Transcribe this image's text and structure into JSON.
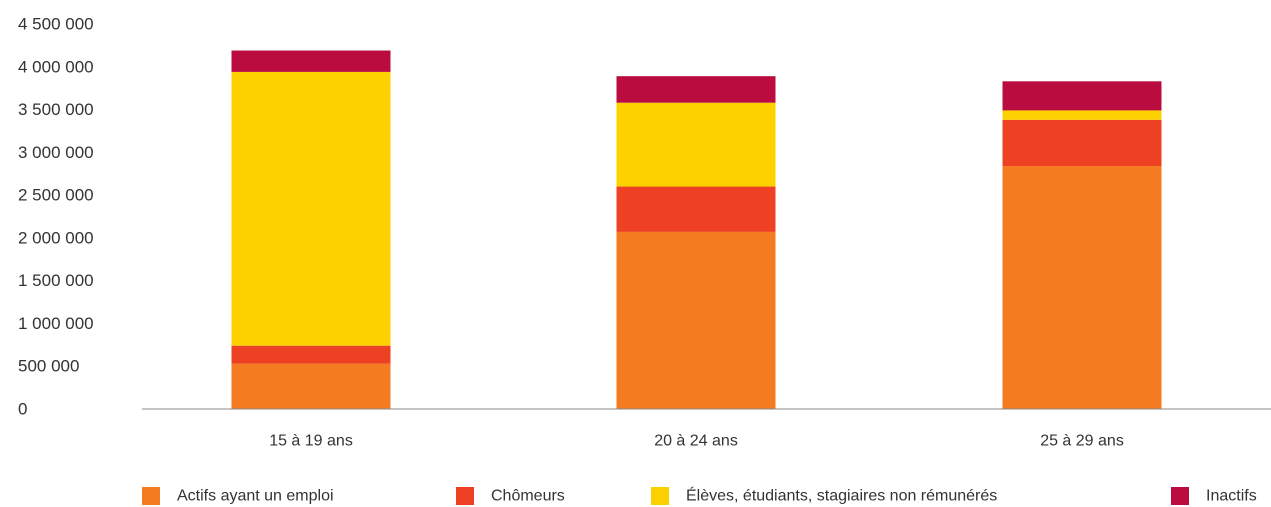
{
  "chart_data": {
    "type": "bar",
    "stacked": true,
    "title": "",
    "xlabel": "",
    "ylabel": "",
    "categories": [
      "15 à 19 ans",
      "20 à 24 ans",
      "25 à 29 ans"
    ],
    "y_ticks": [
      0,
      500000,
      1000000,
      1500000,
      2000000,
      2500000,
      3000000,
      3500000,
      4000000,
      4500000
    ],
    "y_tick_labels": [
      "0",
      "500 000",
      "1 000 000",
      "1 500 000",
      "2 000 000",
      "2 500 000",
      "3 000 000",
      "3 500 000",
      "4 000 000",
      "4 500 000"
    ],
    "ylim": [
      0,
      4500000
    ],
    "grid": false,
    "legend_position": "bottom",
    "series": [
      {
        "name": "Actifs ayant un emploi",
        "color": "#F47B20",
        "values": [
          530000,
          2070000,
          2840000
        ]
      },
      {
        "name": "Chômeurs",
        "color": "#EE4023",
        "values": [
          210000,
          530000,
          540000
        ]
      },
      {
        "name": "Élèves, étudiants, stagiaires non rémunérés",
        "color": "#FDD000",
        "values": [
          3200000,
          980000,
          110000
        ]
      },
      {
        "name": "Inactifs",
        "color": "#BA0C3F",
        "values": [
          250000,
          310000,
          340000
        ]
      }
    ]
  }
}
